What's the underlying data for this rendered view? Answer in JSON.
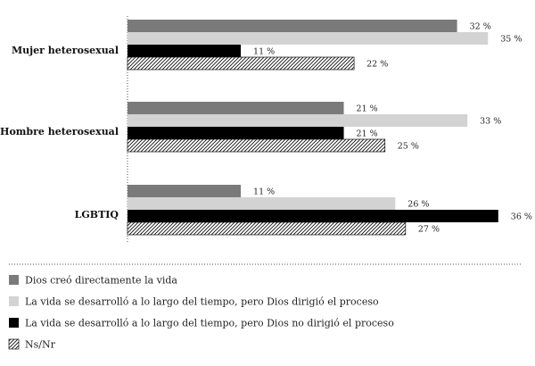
{
  "chart_data": {
    "type": "bar",
    "orientation": "horizontal",
    "categories": [
      "Mujer heterosexual",
      "Hombre heterosexual",
      "LGBTIQ"
    ],
    "series": [
      {
        "name": "Dios creó directamente la vida",
        "values": [
          32,
          21,
          11
        ],
        "color": "#7a7a7a",
        "pattern": "solid"
      },
      {
        "name": "La vida se desarrolló a lo largo del tiempo, pero Dios dirigió el proceso",
        "values": [
          35,
          33,
          26
        ],
        "color": "#d3d3d3",
        "pattern": "solid"
      },
      {
        "name": "La vida se desarrolló a lo largo del tiempo, pero Dios no dirigió el proceso",
        "values": [
          11,
          21,
          36
        ],
        "color": "#000000",
        "pattern": "solid"
      },
      {
        "name": "Ns/Nr",
        "values": [
          22,
          25,
          27
        ],
        "color": "#000000",
        "pattern": "diagonal-hatch"
      }
    ],
    "value_suffix": " %",
    "title": "",
    "xlabel": "",
    "ylabel": "",
    "xlim": [
      0,
      40
    ],
    "grid": false,
    "legend_position": "bottom"
  }
}
